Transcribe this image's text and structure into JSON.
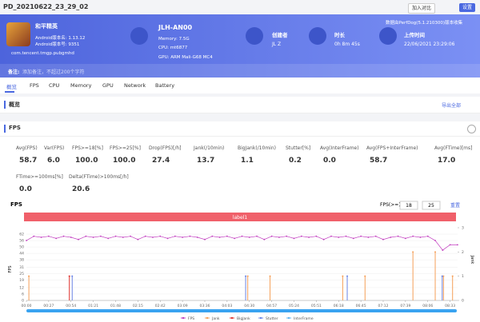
{
  "header": {
    "title": "PD_20210622_23_29_02",
    "buttons": [
      "加入对比",
      "设置"
    ]
  },
  "banner": {
    "app": {
      "name": "和平精英",
      "version_name": "Android版本名: 1.13.12",
      "version_code": "Android版本号: 9351",
      "package": "com.tencent.tmgp.pubgmhd"
    },
    "device": {
      "name": "JLH-AN00",
      "memory": "Memory: 7.5G",
      "cpu": "CPU: mt6877",
      "gpu": "GPU: ARM Mali-G68 MC4"
    },
    "creator": {
      "label": "创建者",
      "value": "JL Z"
    },
    "duration": {
      "label": "时长",
      "value": "0h 8m 45s"
    },
    "upload": {
      "label": "上传时间",
      "value": "22/06/2021 23:29:06"
    },
    "collected_by": "数据由PerfDog(5.1.210300)版本收集",
    "note_label": "备注:",
    "note_placeholder": "添加备注，不超过200个字符"
  },
  "tabs": [
    "概览",
    "FPS",
    "CPU",
    "Memory",
    "GPU",
    "Network",
    "Battery"
  ],
  "overview": {
    "title": "概览",
    "export": "导出全部"
  },
  "fps_section": {
    "title": "FPS"
  },
  "metrics": [
    {
      "label": "Avg(FPS)",
      "value": "58.7"
    },
    {
      "label": "Var(FPS)",
      "value": "6.0"
    },
    {
      "label": "FPS>=18[%]",
      "value": "100.0"
    },
    {
      "label": "FPS>=25[%]",
      "value": "100.0"
    },
    {
      "label": "Drop(FPS)[/h]",
      "value": "27.4"
    },
    {
      "label": "Jank(/10min)",
      "value": "13.7"
    },
    {
      "label": "BigJank(/10min)",
      "value": "1.1"
    },
    {
      "label": "Stutter[%]",
      "value": "0.2"
    },
    {
      "label": "Avg(InterFrame)",
      "value": "0.0"
    },
    {
      "label": "Avg(FPS+InterFrame)",
      "value": "58.7"
    },
    {
      "label": "Avg(FTime)[ms]",
      "value": "17.0"
    },
    {
      "label": "FTime>=100ms[%]",
      "value": "0.0"
    },
    {
      "label": "Delta(FTime)>100ms[/h]",
      "value": "20.6"
    }
  ],
  "fps_chart": {
    "type": "line",
    "title": "FPS",
    "threshold_label": "FPS(>=)",
    "thresholds": [
      "18",
      "25"
    ],
    "reset": "重置",
    "band_label": "label1",
    "ylabel": "FPS",
    "y2label": "Jank",
    "xlim": [
      0,
      525
    ],
    "ylim": [
      0,
      62
    ],
    "y2lim": [
      0,
      3
    ],
    "yticks": [
      0,
      6,
      12,
      19,
      25,
      31,
      38,
      44,
      50,
      56,
      62
    ],
    "y2ticks": [
      0,
      1,
      2,
      3
    ],
    "xticks": [
      {
        "value": 0,
        "label": "00:00"
      },
      {
        "value": 27,
        "label": "00:27"
      },
      {
        "value": 54,
        "label": "00:54"
      },
      {
        "value": 81,
        "label": "01:21"
      },
      {
        "value": 108,
        "label": "01:48"
      },
      {
        "value": 135,
        "label": "02:15"
      },
      {
        "value": 162,
        "label": "02:42"
      },
      {
        "value": 189,
        "label": "03:09"
      },
      {
        "value": 216,
        "label": "03:36"
      },
      {
        "value": 243,
        "label": "04:03"
      },
      {
        "value": 270,
        "label": "04:30"
      },
      {
        "value": 297,
        "label": "04:57"
      },
      {
        "value": 324,
        "label": "05:24"
      },
      {
        "value": 351,
        "label": "05:51"
      },
      {
        "value": 378,
        "label": "06:18"
      },
      {
        "value": 405,
        "label": "06:45"
      },
      {
        "value": 432,
        "label": "07:12"
      },
      {
        "value": 459,
        "label": "07:39"
      },
      {
        "value": 486,
        "label": "08:06"
      },
      {
        "value": 513,
        "label": "08:33"
      }
    ],
    "series": [
      {
        "name": "FPS",
        "color": "#c23fc0",
        "x": [
          0,
          9,
          18,
          27,
          36,
          45,
          54,
          63,
          72,
          81,
          90,
          99,
          108,
          117,
          126,
          135,
          144,
          153,
          162,
          171,
          180,
          189,
          198,
          207,
          216,
          225,
          234,
          243,
          252,
          261,
          270,
          279,
          288,
          297,
          306,
          315,
          324,
          333,
          342,
          351,
          360,
          369,
          378,
          387,
          396,
          405,
          414,
          423,
          432,
          441,
          450,
          459,
          468,
          477,
          486,
          495,
          504,
          513,
          522
        ],
        "values": [
          56,
          60,
          59,
          60,
          58,
          60,
          59,
          57,
          60,
          59,
          60,
          58,
          60,
          59,
          60,
          57,
          60,
          59,
          60,
          58,
          60,
          59,
          60,
          59,
          57,
          60,
          59,
          60,
          58,
          60,
          59,
          60,
          57,
          60,
          59,
          60,
          58,
          60,
          59,
          60,
          57,
          60,
          59,
          60,
          58,
          60,
          59,
          60,
          57,
          59,
          60,
          58,
          60,
          59,
          60,
          56,
          47,
          52,
          52
        ]
      },
      {
        "name": "Jank",
        "color": "#f5a05a",
        "axis": "y2",
        "x": [
          3,
          268,
          295,
          383,
          410,
          468,
          495,
          505,
          516
        ],
        "values": [
          1,
          1,
          1,
          1,
          1,
          2,
          2,
          1,
          1
        ]
      },
      {
        "name": "BigJank",
        "color": "#e0342f",
        "axis": "y2",
        "x": [
          52
        ],
        "values": [
          1
        ]
      },
      {
        "name": "Stutter",
        "color": "#6b86e6",
        "axis": "y2",
        "x": [
          54,
          264,
          387,
          502
        ],
        "values": [
          1,
          1,
          1,
          1
        ]
      },
      {
        "name": "InterFrame",
        "color": "#5fb4f2",
        "axis": "y2",
        "x": [],
        "values": []
      }
    ]
  }
}
